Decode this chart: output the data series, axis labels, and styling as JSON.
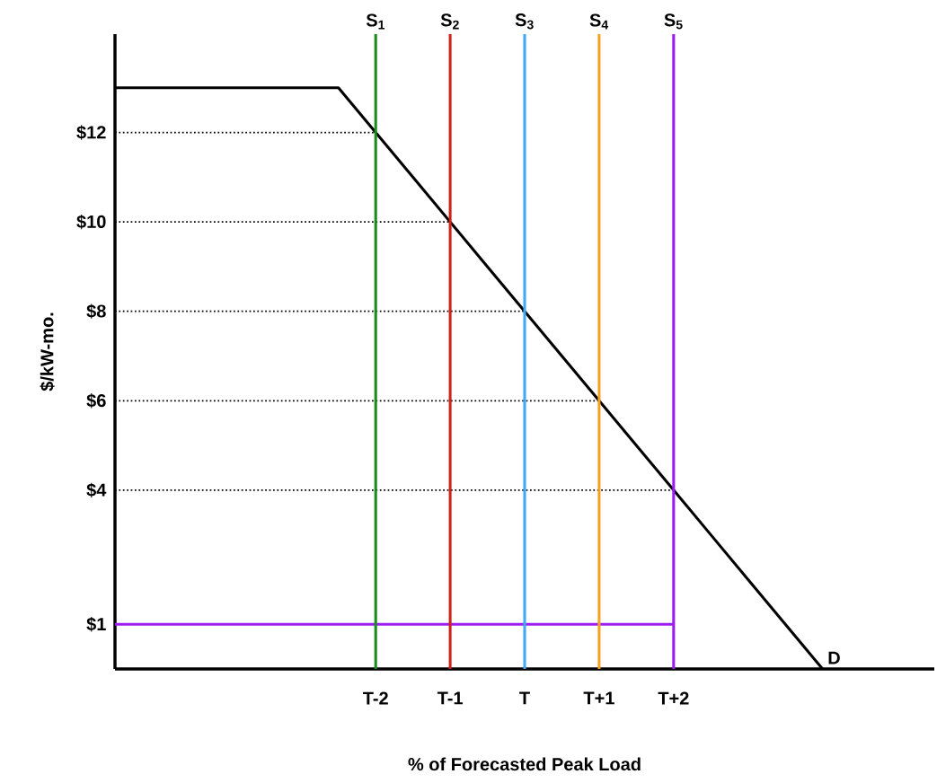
{
  "chart_data": {
    "type": "line",
    "xlabel": "% of Forecasted Peak Load",
    "ylabel": "$/kW-mo.",
    "ylim": [
      0,
      14.2
    ],
    "categories": [
      null,
      null,
      null,
      null,
      null,
      null,
      null,
      "T-2",
      null,
      "T-1",
      null,
      "T",
      null,
      "T+1",
      null,
      "T+2",
      null,
      null,
      null,
      null,
      null,
      null,
      null
    ],
    "yticks": [
      {
        "value": 1,
        "label": "$1"
      },
      {
        "value": 4,
        "label": "$4"
      },
      {
        "value": 6,
        "label": "$6"
      },
      {
        "value": 8,
        "label": "$8"
      },
      {
        "value": 10,
        "label": "$10"
      },
      {
        "value": 12,
        "label": "$12"
      }
    ],
    "series": [
      {
        "name": "D",
        "color": "#000000",
        "values": [
          13,
          13,
          13,
          13,
          13,
          13,
          13,
          12,
          11,
          10,
          9,
          8,
          7,
          6,
          5,
          4,
          3,
          2,
          1,
          0,
          null,
          null,
          null
        ]
      },
      {
        "color": "#9b1df0",
        "values": [
          1,
          1,
          1,
          1,
          1,
          1,
          1,
          1,
          1,
          1,
          1,
          1,
          1,
          1,
          1,
          1,
          null,
          null,
          null,
          null,
          null,
          null,
          null
        ]
      },
      {
        "color": "#000000",
        "line_style": "dotted",
        "values": [
          12,
          12,
          12,
          12,
          12,
          12,
          12,
          12,
          null,
          null,
          null,
          null,
          null,
          null,
          null,
          null,
          null,
          null,
          null,
          null,
          null,
          null,
          null
        ]
      },
      {
        "color": "#000000",
        "line_style": "dotted",
        "values": [
          10,
          10,
          10,
          10,
          10,
          10,
          10,
          10,
          10,
          10,
          null,
          null,
          null,
          null,
          null,
          null,
          null,
          null,
          null,
          null,
          null,
          null,
          null
        ]
      },
      {
        "color": "#000000",
        "line_style": "dotted",
        "values": [
          8,
          8,
          8,
          8,
          8,
          8,
          8,
          8,
          8,
          8,
          8,
          8,
          null,
          null,
          null,
          null,
          null,
          null,
          null,
          null,
          null,
          null,
          null
        ]
      },
      {
        "color": "#000000",
        "line_style": "dotted",
        "values": [
          6,
          6,
          6,
          6,
          6,
          6,
          6,
          6,
          6,
          6,
          6,
          6,
          6,
          6,
          null,
          null,
          null,
          null,
          null,
          null,
          null,
          null,
          null
        ]
      },
      {
        "color": "#000000",
        "line_style": "dotted",
        "values": [
          4,
          4,
          4,
          4,
          4,
          4,
          4,
          4,
          4,
          4,
          4,
          4,
          4,
          4,
          4,
          4,
          null,
          null,
          null,
          null,
          null,
          null,
          null
        ]
      }
    ],
    "ref_lines": [
      {
        "axis": "x",
        "value": "T-2",
        "label": "S$_{1}$",
        "color": "#1a8c1a"
      },
      {
        "axis": "x",
        "value": "T-1",
        "label": "S$_{2}$",
        "color": "#d0201c"
      },
      {
        "axis": "x",
        "value": "T",
        "label": "S$_{3}$",
        "color": "#3fa9f5"
      },
      {
        "axis": "x",
        "value": "T+1",
        "label": "S$_{4}$",
        "color": "#f7a020"
      },
      {
        "axis": "x",
        "value": "T+2",
        "label": "S$_{5}$",
        "color": "#9b1df0"
      }
    ]
  }
}
